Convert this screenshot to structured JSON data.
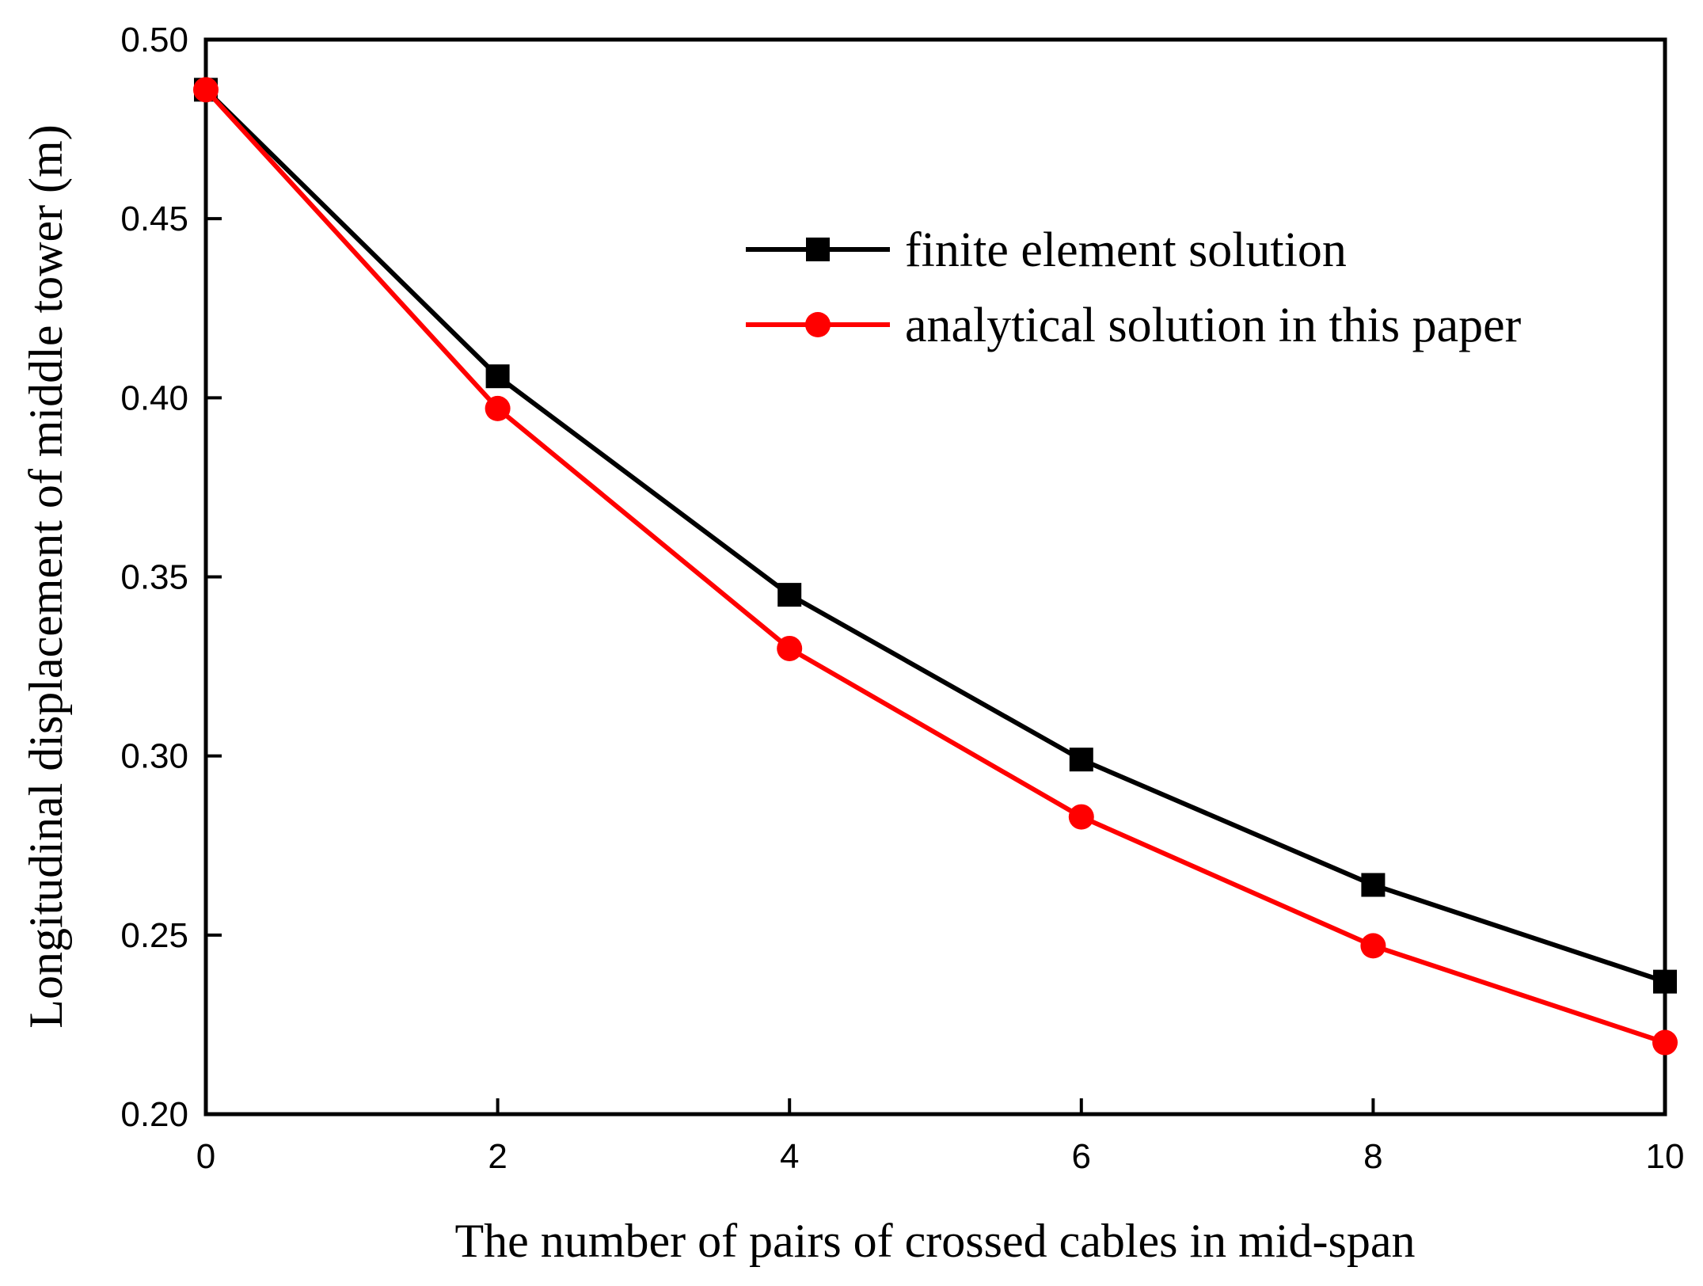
{
  "chart_data": {
    "type": "line",
    "title": "",
    "xlabel": "The number of pairs of crossed cables in mid-span",
    "ylabel": "Longitudinal displacement of middle tower (m)",
    "xlim": [
      0,
      10
    ],
    "ylim": [
      0.2,
      0.5
    ],
    "xticks": [
      0,
      2,
      4,
      6,
      8,
      10
    ],
    "xtick_labels": [
      "0",
      "2",
      "4",
      "6",
      "8",
      "10"
    ],
    "yticks": [
      0.2,
      0.25,
      0.3,
      0.35,
      0.4,
      0.45,
      0.5
    ],
    "ytick_labels": [
      "0.20",
      "0.25",
      "0.30",
      "0.35",
      "0.40",
      "0.45",
      "0.50"
    ],
    "grid": false,
    "legend_position": "top-right",
    "x": [
      0,
      2,
      4,
      6,
      8,
      10
    ],
    "series": [
      {
        "name": "finite element solution",
        "color": "#000000",
        "marker": "square",
        "values": [
          0.486,
          0.406,
          0.345,
          0.299,
          0.264,
          0.237
        ]
      },
      {
        "name": "analytical solution in this paper",
        "color": "#ff0000",
        "marker": "circle",
        "values": [
          0.486,
          0.397,
          0.33,
          0.283,
          0.247,
          0.22
        ]
      }
    ]
  }
}
